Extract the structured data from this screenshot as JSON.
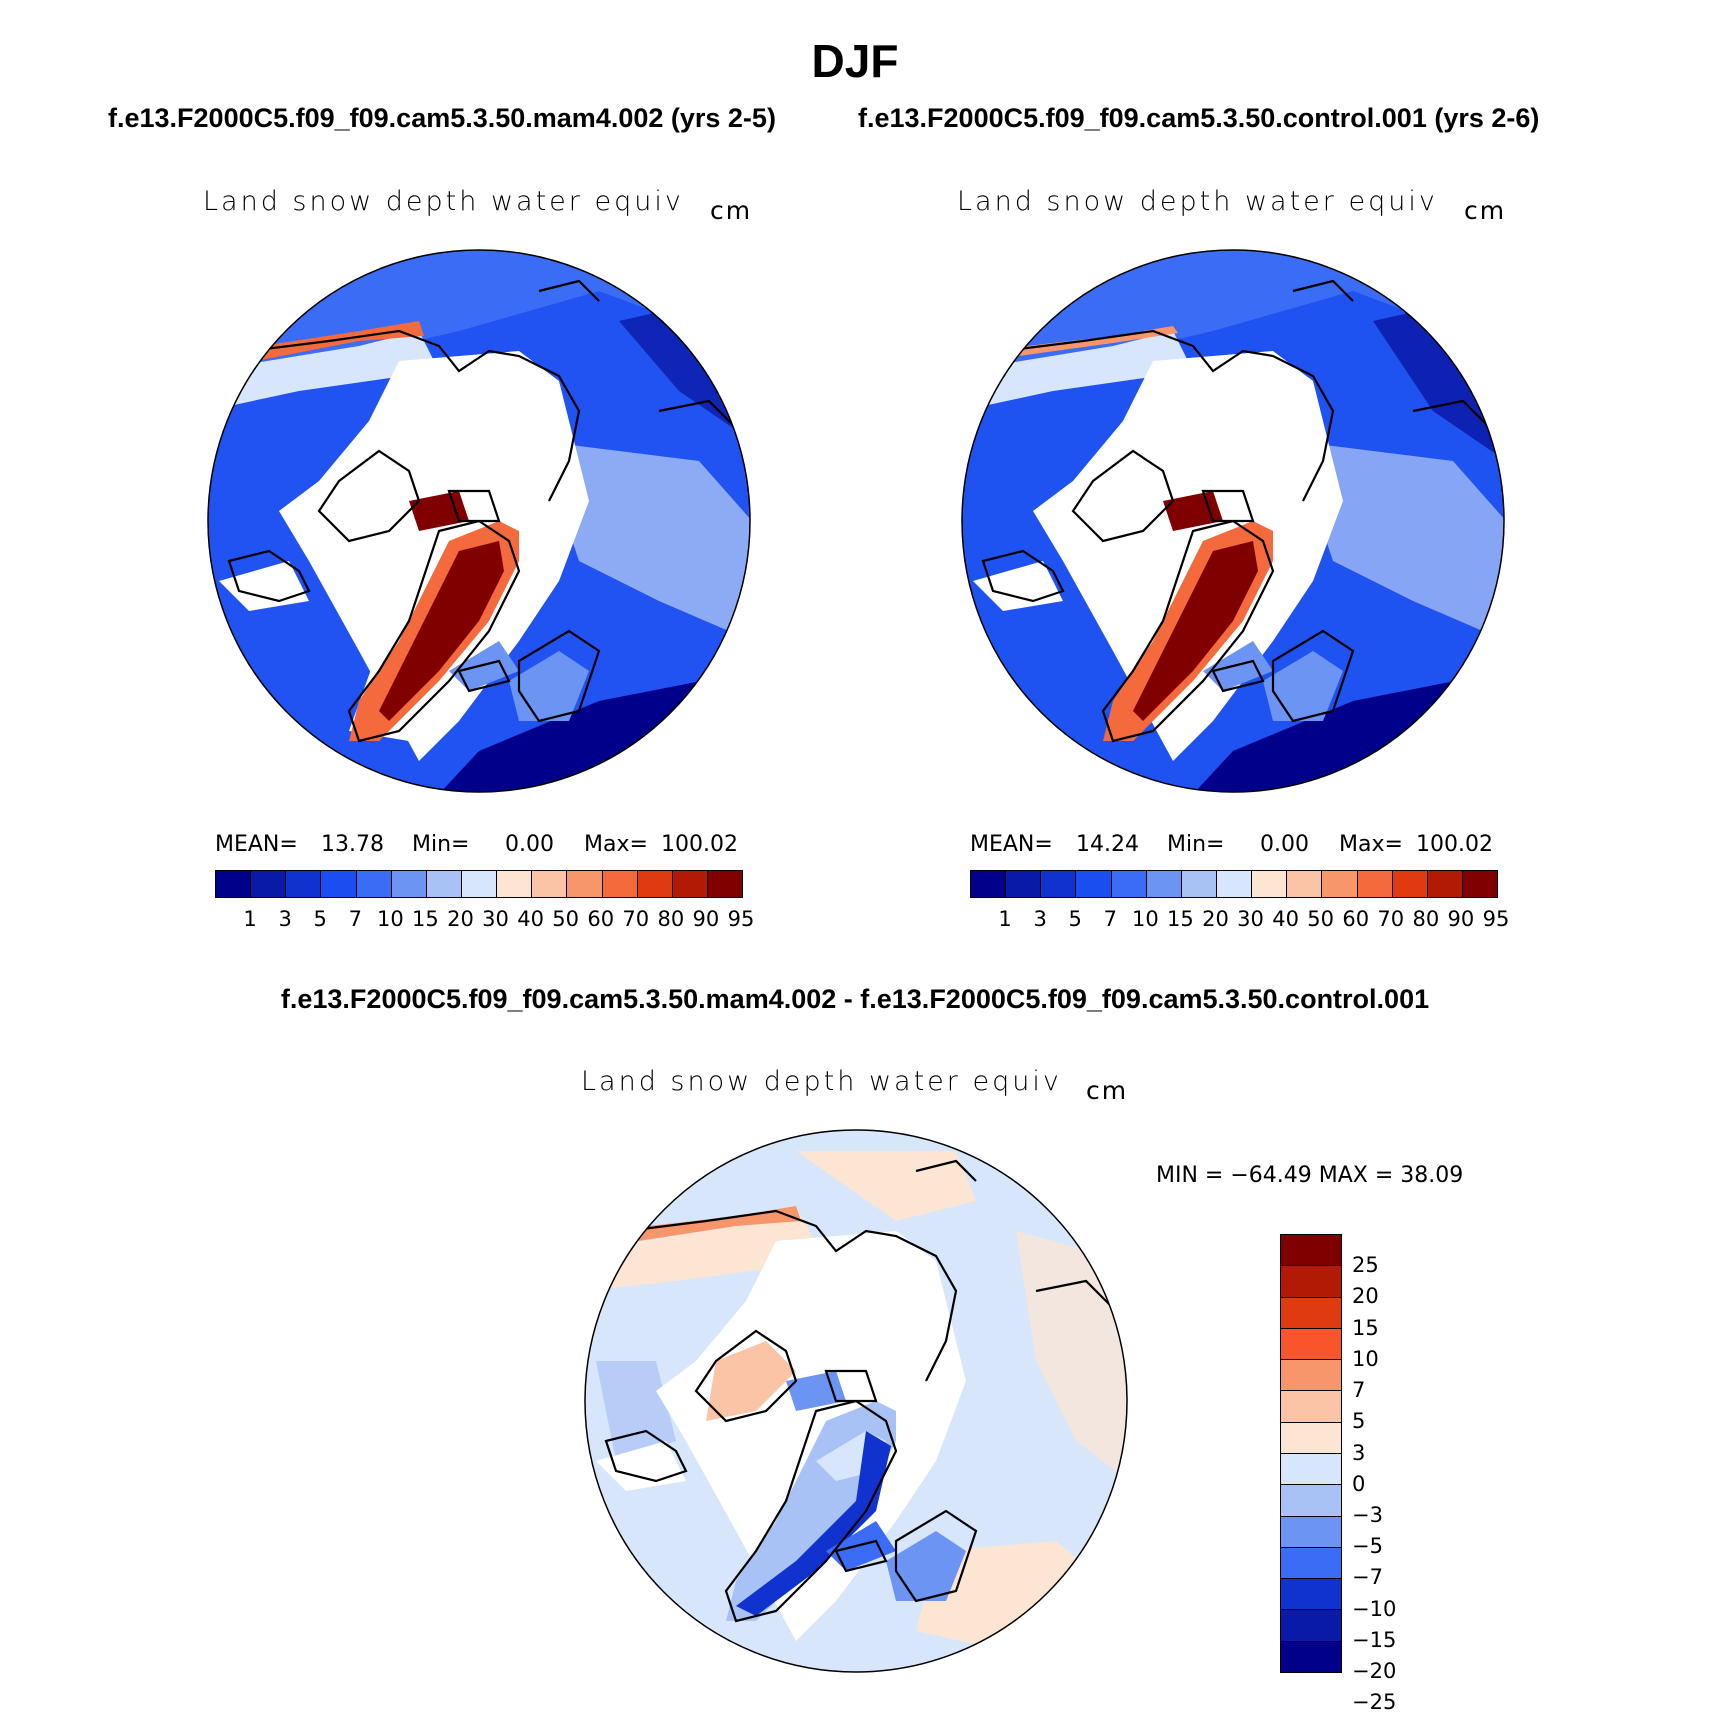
{
  "title": "DJF",
  "top_subtitle_left": "f.e13.F2000C5.f09_f09.cam5.3.50.mam4.002 (yrs 2-5)",
  "top_subtitle_right": "f.e13.F2000C5.f09_f09.cam5.3.50.control.001 (yrs 2-6)",
  "diff_subtitle": "f.e13.F2000C5.f09_f09.cam5.3.50.mam4.002 - f.e13.F2000C5.f09_f09.cam5.3.50.control.001",
  "panels": [
    {
      "variable": "Land snow depth water equiv",
      "units": "cm",
      "mean_label": "MEAN=",
      "mean_value": "13.78",
      "min_label": "Min=",
      "min_value": "0.00",
      "max_label": "Max=",
      "max_value": "100.02"
    },
    {
      "variable": "Land snow depth water equiv",
      "units": "cm",
      "mean_label": "MEAN=",
      "mean_value": "14.24",
      "min_label": "Min=",
      "min_value": "0.00",
      "max_label": "Max=",
      "max_value": "100.02"
    }
  ],
  "diff_panel": {
    "variable": "Land snow depth water equiv",
    "units": "cm",
    "minmax": "MIN = −64.49 MAX =   38.09"
  },
  "abs_colorbar": {
    "colors": [
      "#00008b",
      "#0a1aa8",
      "#1033d0",
      "#1a4ef0",
      "#3b6cf5",
      "#6c94f3",
      "#a9c2f6",
      "#d7e6fb",
      "#fde5d3",
      "#fbc4a6",
      "#f7956b",
      "#f46a3c",
      "#e03a10",
      "#b21a06",
      "#800000"
    ],
    "labels": [
      "1",
      "3",
      "5",
      "7",
      "10",
      "15",
      "20",
      "30",
      "40",
      "50",
      "60",
      "70",
      "80",
      "90",
      "95"
    ]
  },
  "diff_colorbar": {
    "colors": [
      "#800000",
      "#b21a06",
      "#e03a10",
      "#f8552c",
      "#f7956b",
      "#fbc4a6",
      "#fde5d3",
      "#d7e6fb",
      "#a9c2f6",
      "#6c94f3",
      "#3b6cf5",
      "#1033d0",
      "#0a1aa8",
      "#00008b"
    ],
    "labels": [
      "25",
      "20",
      "15",
      "10",
      "7",
      "5",
      "3",
      "0",
      "−3",
      "−5",
      "−7",
      "−10",
      "−15",
      "−20",
      "−25"
    ]
  }
}
